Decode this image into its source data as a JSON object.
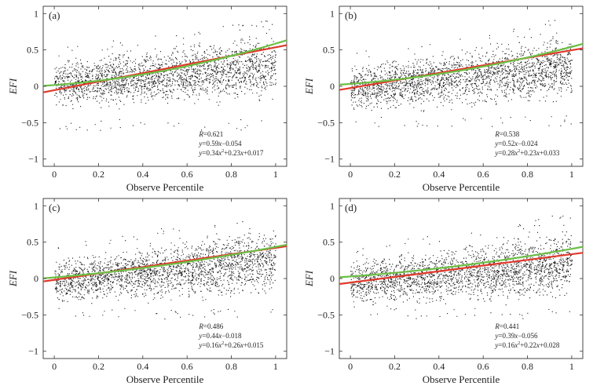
{
  "chart_data": [
    {
      "type": "scatter",
      "panel_label": "(a)",
      "xlabel": "Observe Percentile",
      "ylabel": "EFI",
      "xlim": [
        -0.05,
        1.05
      ],
      "ylim": [
        -1.1,
        1.1
      ],
      "x_ticks": [
        0,
        0.2,
        0.4,
        0.6,
        0.8,
        1
      ],
      "x_tick_labels": [
        "0",
        "0.2",
        "0.4",
        "0.6",
        "0.8",
        "1"
      ],
      "y_ticks": [
        -1,
        -0.5,
        0,
        0.5,
        1
      ],
      "y_tick_labels": [
        "−1",
        "−0.5",
        "0",
        "0.5",
        "1"
      ],
      "point_cloud": {
        "x_range": [
          0,
          1
        ],
        "band_low": -0.35,
        "band_high_start": 0.4,
        "band_high_end": 0.85,
        "outliers_low": -0.6
      },
      "series": [
        {
          "name": "linear fit",
          "kind": "linear",
          "color": "#e0392b",
          "coef": {
            "a": 0,
            "b": 0.59,
            "c": -0.054
          }
        },
        {
          "name": "quadratic fit",
          "kind": "quadratic",
          "color": "#6cbf45",
          "coef": {
            "a": 0.34,
            "b": 0.23,
            "c": 0.017
          }
        }
      ],
      "annotation": {
        "r": {
          "label": "R",
          "value": "=0.621"
        },
        "linear": {
          "y": "y",
          "eq": "=0.59",
          "x": "x",
          "rest": "−0.054"
        },
        "quadratic": {
          "y": "y",
          "eq": "=0.34",
          "x1": "x",
          "sup": "2",
          "mid": "+0.23",
          "x2": "x",
          "rest": "+0.017"
        }
      }
    },
    {
      "type": "scatter",
      "panel_label": "(b)",
      "xlabel": "Observe Percentile",
      "ylabel": "EFI",
      "xlim": [
        -0.05,
        1.05
      ],
      "ylim": [
        -1.1,
        1.1
      ],
      "x_ticks": [
        0,
        0.2,
        0.4,
        0.6,
        0.8,
        1
      ],
      "x_tick_labels": [
        "0",
        "0.2",
        "0.4",
        "0.6",
        "0.8",
        "1"
      ],
      "y_ticks": [
        -1,
        -0.5,
        0,
        0.5,
        1
      ],
      "y_tick_labels": [
        "−1",
        "−0.5",
        "0",
        "0.5",
        "1"
      ],
      "point_cloud": {
        "x_range": [
          0,
          1
        ],
        "band_low": -0.4,
        "band_high_start": 0.35,
        "band_high_end": 0.85,
        "outliers_low": -0.55
      },
      "series": [
        {
          "name": "linear fit",
          "kind": "linear",
          "color": "#e0392b",
          "coef": {
            "a": 0,
            "b": 0.52,
            "c": -0.024
          }
        },
        {
          "name": "quadratic fit",
          "kind": "quadratic",
          "color": "#6cbf45",
          "coef": {
            "a": 0.28,
            "b": 0.23,
            "c": 0.033
          }
        }
      ],
      "annotation": {
        "r": {
          "label": "R",
          "value": "=0.538"
        },
        "linear": {
          "y": "y",
          "eq": "=0.52",
          "x": "x",
          "rest": "−0.024"
        },
        "quadratic": {
          "y": "y",
          "eq": "=0.28",
          "x1": "x",
          "sup": "2",
          "mid": "+0.23",
          "x2": "x",
          "rest": "+0.033"
        }
      }
    },
    {
      "type": "scatter",
      "panel_label": "(c)",
      "xlabel": "Observe Percentile",
      "ylabel": "EFI",
      "xlim": [
        -0.05,
        1.05
      ],
      "ylim": [
        -1.1,
        1.1
      ],
      "x_ticks": [
        0,
        0.2,
        0.4,
        0.6,
        0.8,
        1
      ],
      "x_tick_labels": [
        "0",
        "0.2",
        "0.4",
        "0.6",
        "0.8",
        "1"
      ],
      "y_ticks": [
        -1,
        -0.5,
        0,
        0.5,
        1
      ],
      "y_tick_labels": [
        "−1",
        "−0.5",
        "0",
        "0.5",
        "1"
      ],
      "point_cloud": {
        "x_range": [
          0,
          1
        ],
        "band_low": -0.42,
        "band_high_start": 0.35,
        "band_high_end": 0.85,
        "outliers_low": -0.55
      },
      "series": [
        {
          "name": "linear fit",
          "kind": "linear",
          "color": "#e0392b",
          "coef": {
            "a": 0,
            "b": 0.44,
            "c": -0.018
          }
        },
        {
          "name": "quadratic fit",
          "kind": "quadratic",
          "color": "#6cbf45",
          "coef": {
            "a": 0.16,
            "b": 0.26,
            "c": 0.015
          }
        }
      ],
      "annotation": {
        "r": {
          "label": "R",
          "value": "=0.486"
        },
        "linear": {
          "y": "y",
          "eq": "=0.44",
          "x": "x",
          "rest": "−0.018"
        },
        "quadratic": {
          "y": "y",
          "eq": "=0.16",
          "x1": "x",
          "sup": "2",
          "mid": "+0.26",
          "x2": "x",
          "rest": "+0.015"
        }
      }
    },
    {
      "type": "scatter",
      "panel_label": "(d)",
      "xlabel": "Observe Percentile",
      "ylabel": "EFI",
      "xlim": [
        -0.05,
        1.05
      ],
      "ylim": [
        -1.1,
        1.1
      ],
      "x_ticks": [
        0,
        0.2,
        0.4,
        0.6,
        0.8,
        1
      ],
      "x_tick_labels": [
        "0",
        "0.2",
        "0.4",
        "0.6",
        "0.8",
        "1"
      ],
      "y_ticks": [
        -1,
        -0.5,
        0,
        0.5,
        1
      ],
      "y_tick_labels": [
        "−1",
        "−0.5",
        "0",
        "0.5",
        "1"
      ],
      "point_cloud": {
        "x_range": [
          0,
          1
        ],
        "band_low": -0.45,
        "band_high_start": 0.3,
        "band_high_end": 0.8,
        "outliers_low": -0.55
      },
      "series": [
        {
          "name": "linear fit",
          "kind": "linear",
          "color": "#e0392b",
          "coef": {
            "a": 0,
            "b": 0.39,
            "c": -0.056
          }
        },
        {
          "name": "quadratic fit",
          "kind": "quadratic",
          "color": "#6cbf45",
          "coef": {
            "a": 0.16,
            "b": 0.22,
            "c": 0.028
          }
        }
      ],
      "annotation": {
        "r": {
          "label": "R",
          "value": "=0.441"
        },
        "linear": {
          "y": "y",
          "eq": "=0.39",
          "x": "x",
          "rest": "−0.056"
        },
        "quadratic": {
          "y": "y",
          "eq": "=0.16",
          "x1": "x",
          "sup": "2",
          "mid": "+0.22",
          "x2": "x",
          "rest": "+0.028"
        }
      }
    }
  ]
}
